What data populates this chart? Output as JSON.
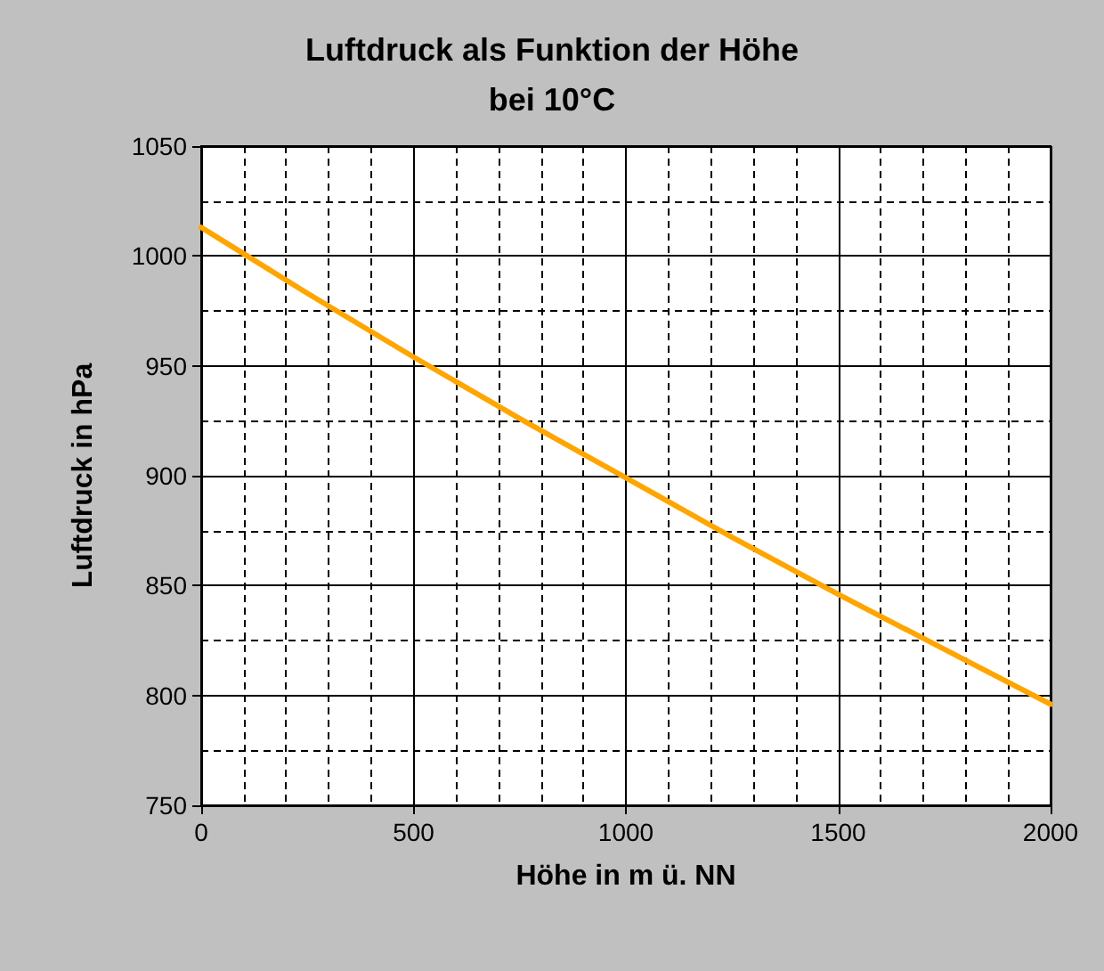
{
  "chart_data": {
    "type": "line",
    "title": "Luftdruck als Funktion der Höhe",
    "subtitle": "bei 10°C",
    "xlabel": "Höhe in m ü. NN",
    "ylabel": "Luftdruck in hPa",
    "x": [
      0,
      250,
      500,
      750,
      1000,
      1250,
      1500,
      1750,
      2000
    ],
    "series": [
      {
        "color": "#ffa500",
        "values": [
          1013,
          983,
          954,
          926,
          899,
          872,
          846,
          821,
          796
        ]
      }
    ],
    "xlim": [
      0,
      2000
    ],
    "xticks": [
      0,
      500,
      1000,
      1500,
      2000
    ],
    "ylim": [
      750,
      1050
    ],
    "yticks": [
      750,
      800,
      850,
      900,
      950,
      1000,
      1050
    ],
    "grid": true,
    "marker": "none",
    "line_style": "solid"
  }
}
